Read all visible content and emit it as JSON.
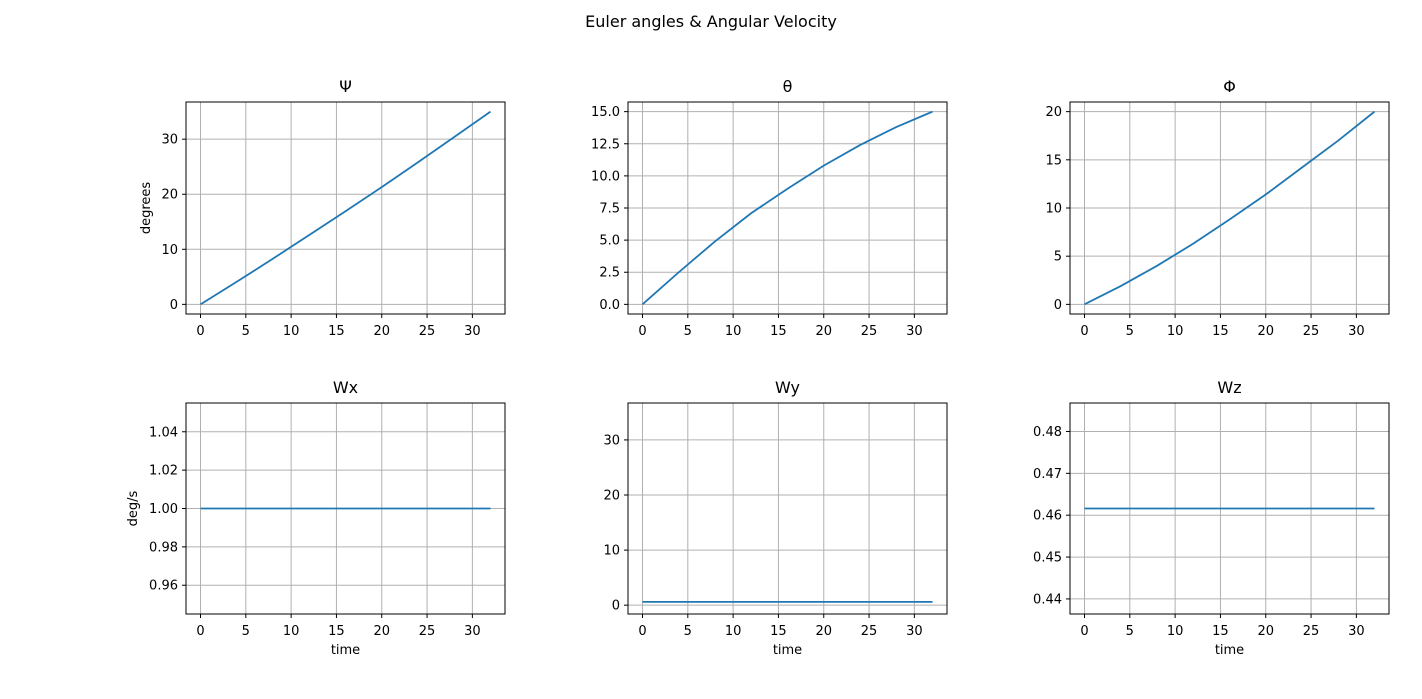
{
  "figure": {
    "suptitle": "Euler angles & Angular Velocity"
  },
  "chart_data": [
    {
      "type": "line",
      "title": "Ψ",
      "xlabel": "",
      "ylabel": "degrees",
      "grid": true,
      "xlim": [
        -1.6,
        33.6
      ],
      "ylim": [
        -1.75,
        36.75
      ],
      "xticks": [
        0,
        5,
        10,
        15,
        20,
        25,
        30
      ],
      "yticks": [
        0,
        10,
        20,
        30
      ],
      "ytick_labels": [
        "0",
        "10",
        "20",
        "30"
      ],
      "color": "#1f77b4",
      "series": [
        {
          "x": [
            0,
            4,
            8,
            12,
            16,
            20,
            24,
            28,
            32
          ],
          "values": [
            0,
            4.1,
            8.3,
            12.6,
            16.9,
            21.3,
            25.8,
            30.4,
            35.0
          ]
        }
      ]
    },
    {
      "type": "line",
      "title": "θ",
      "xlabel": "",
      "ylabel": "",
      "grid": true,
      "xlim": [
        -1.6,
        33.6
      ],
      "ylim": [
        -0.75,
        15.75
      ],
      "xticks": [
        0,
        5,
        10,
        15,
        20,
        25,
        30
      ],
      "yticks": [
        0,
        2.5,
        5,
        7.5,
        10,
        12.5,
        15
      ],
      "ytick_labels": [
        "0.0",
        "2.5",
        "5.0",
        "7.5",
        "10.0",
        "12.5",
        "15.0"
      ],
      "color": "#1f77b4",
      "series": [
        {
          "x": [
            0,
            4,
            8,
            12,
            16,
            20,
            24,
            28,
            32
          ],
          "values": [
            0,
            2.5,
            4.9,
            7.1,
            9.0,
            10.8,
            12.4,
            13.8,
            15.0
          ]
        }
      ]
    },
    {
      "type": "line",
      "title": "Φ",
      "xlabel": "",
      "ylabel": "",
      "grid": true,
      "xlim": [
        -1.6,
        33.6
      ],
      "ylim": [
        -1.0,
        21.0
      ],
      "xticks": [
        0,
        5,
        10,
        15,
        20,
        25,
        30
      ],
      "yticks": [
        0,
        5,
        10,
        15,
        20
      ],
      "ytick_labels": [
        "0",
        "5",
        "10",
        "15",
        "20"
      ],
      "color": "#1f77b4",
      "series": [
        {
          "x": [
            0,
            4,
            8,
            12,
            16,
            20,
            24,
            28,
            32
          ],
          "values": [
            0,
            1.9,
            4.0,
            6.3,
            8.8,
            11.4,
            14.2,
            17.0,
            20.0
          ]
        }
      ]
    },
    {
      "type": "line",
      "title": "Wx",
      "xlabel": "time",
      "ylabel": "deg/s",
      "grid": true,
      "xlim": [
        -1.6,
        33.6
      ],
      "ylim": [
        0.945,
        1.055
      ],
      "xticks": [
        0,
        5,
        10,
        15,
        20,
        25,
        30
      ],
      "yticks": [
        0.96,
        0.98,
        1.0,
        1.02,
        1.04
      ],
      "ytick_labels": [
        "0.96",
        "0.98",
        "1.00",
        "1.02",
        "1.04"
      ],
      "color": "#1f77b4",
      "series": [
        {
          "x": [
            0,
            32
          ],
          "values": [
            1.0,
            1.0
          ]
        }
      ]
    },
    {
      "type": "line",
      "title": "Wy",
      "xlabel": "time",
      "ylabel": "",
      "grid": true,
      "xlim": [
        -1.6,
        33.6
      ],
      "ylim": [
        -1.6,
        36.7
      ],
      "xticks": [
        0,
        5,
        10,
        15,
        20,
        25,
        30
      ],
      "yticks": [
        0,
        10,
        20,
        30
      ],
      "ytick_labels": [
        "0",
        "10",
        "20",
        "30"
      ],
      "color": "#1f77b4",
      "series": [
        {
          "x": [
            0,
            32
          ],
          "values": [
            0.6,
            0.6
          ]
        }
      ]
    },
    {
      "type": "line",
      "title": "Wz",
      "xlabel": "time",
      "ylabel": "",
      "grid": true,
      "xlim": [
        -1.6,
        33.6
      ],
      "ylim": [
        0.4364,
        0.4868
      ],
      "xticks": [
        0,
        5,
        10,
        15,
        20,
        25,
        30
      ],
      "yticks": [
        0.44,
        0.45,
        0.46,
        0.47,
        0.48
      ],
      "ytick_labels": [
        "0.44",
        "0.45",
        "0.46",
        "0.47",
        "0.48"
      ],
      "color": "#1f77b4",
      "series": [
        {
          "x": [
            0,
            32
          ],
          "values": [
            0.4616,
            0.4616
          ]
        }
      ]
    }
  ]
}
